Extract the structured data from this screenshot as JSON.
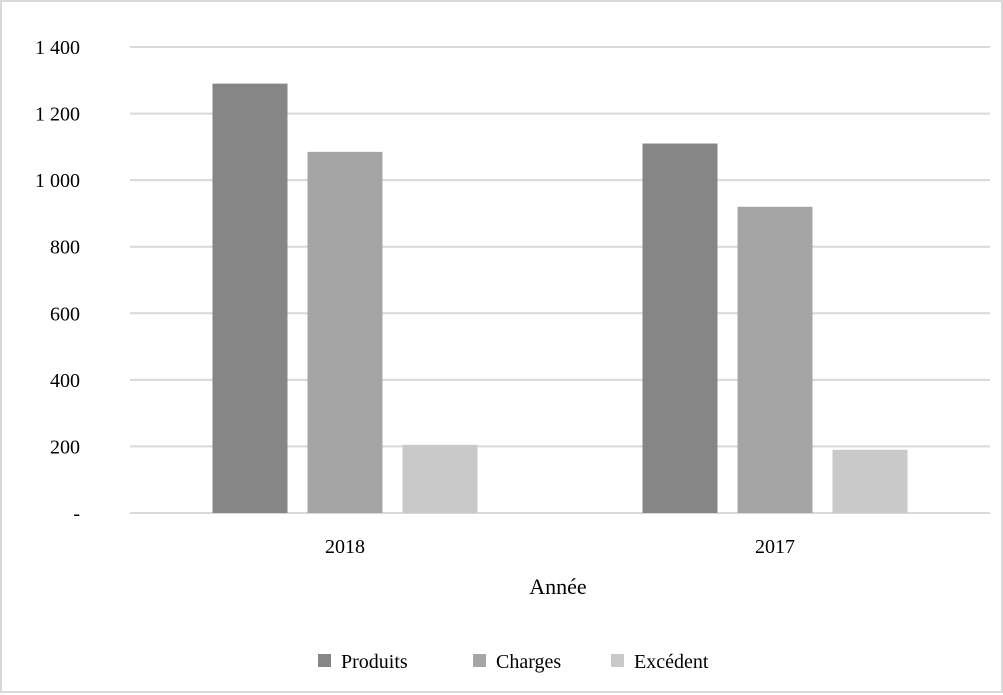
{
  "chart_data": {
    "type": "bar",
    "title": "",
    "xlabel": "Année",
    "ylabel": "",
    "categories": [
      "2018",
      "2017"
    ],
    "series": [
      {
        "name": "Produits",
        "values": [
          1290,
          1110
        ],
        "color": "#868686"
      },
      {
        "name": "Charges",
        "values": [
          1085,
          920
        ],
        "color": "#a5a5a5"
      },
      {
        "name": "Excédent",
        "values": [
          205,
          190
        ],
        "color": "#c9c9c9"
      }
    ],
    "ylim": [
      0,
      1400
    ],
    "yticks": [
      {
        "value": 0,
        "label": "-"
      },
      {
        "value": 200,
        "label": "200"
      },
      {
        "value": 400,
        "label": "400"
      },
      {
        "value": 600,
        "label": "600"
      },
      {
        "value": 800,
        "label": "800"
      },
      {
        "value": 1000,
        "label": "1 000"
      },
      {
        "value": 1200,
        "label": "1 200"
      },
      {
        "value": 1400,
        "label": "1 400"
      }
    ],
    "grid": true,
    "gridColor": "#d9d9d9",
    "legend_position": "bottom"
  }
}
